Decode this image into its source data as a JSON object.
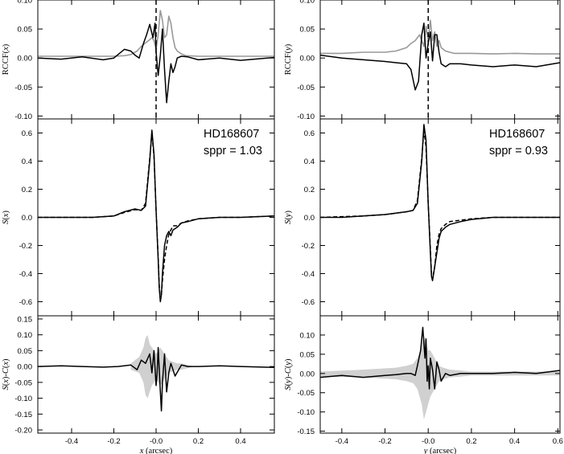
{
  "chart_data": [
    {
      "type": "line",
      "panel": "left-top",
      "ylabel": "RCCF(x)",
      "xlim": [
        -0.56,
        0.56
      ],
      "ylim": [
        -0.105,
        0.1
      ],
      "yticks": [
        -0.1,
        -0.05,
        0.0,
        0.05,
        0.1
      ],
      "ytick_labels": [
        "-0.10",
        "-0.05",
        "0.00",
        "0.05",
        "0.10"
      ],
      "vline": 0.0,
      "colors": {
        "black": "#000000",
        "gray": "#999999"
      },
      "series": [
        {
          "color": "gray",
          "x": [
            -0.56,
            -0.2,
            -0.15,
            -0.12,
            -0.09,
            -0.07,
            -0.05,
            -0.035,
            -0.02,
            -0.01,
            0.0,
            0.01,
            0.02,
            0.03,
            0.04,
            0.05,
            0.06,
            0.07,
            0.08,
            0.09,
            0.1,
            0.12,
            0.14,
            0.2,
            0.56
          ],
          "y": [
            0.003,
            0.003,
            0.004,
            0.006,
            0.012,
            0.02,
            0.026,
            0.03,
            0.035,
            0.03,
            0.015,
            0.04,
            0.082,
            0.065,
            0.035,
            0.04,
            0.072,
            0.06,
            0.035,
            0.018,
            0.012,
            0.007,
            0.004,
            0.003,
            0.003
          ]
        },
        {
          "color": "black",
          "x": [
            -0.56,
            -0.45,
            -0.35,
            -0.25,
            -0.2,
            -0.15,
            -0.12,
            -0.1,
            -0.08,
            -0.06,
            -0.045,
            -0.03,
            -0.015,
            -0.005,
            0.0,
            0.01,
            0.02,
            0.03,
            0.04,
            0.05,
            0.06,
            0.07,
            0.08,
            0.09,
            0.1,
            0.12,
            0.15,
            0.2,
            0.3,
            0.4,
            0.56
          ],
          "y": [
            0.0,
            -0.002,
            0.002,
            -0.003,
            0.0,
            0.015,
            0.012,
            0.005,
            0.0,
            0.025,
            0.04,
            0.058,
            0.035,
            0.06,
            0.01,
            -0.03,
            0.005,
            0.05,
            -0.02,
            -0.077,
            -0.04,
            -0.01,
            -0.025,
            -0.015,
            0.0,
            0.003,
            0.002,
            -0.003,
            0.0,
            -0.004,
            0.001
          ]
        }
      ]
    },
    {
      "type": "line",
      "panel": "left-middle",
      "ylabel": "S(x)",
      "xlim": [
        -0.56,
        0.56
      ],
      "ylim": [
        -0.7,
        0.7
      ],
      "yticks": [
        -0.6,
        -0.4,
        -0.2,
        0.0,
        0.2,
        0.4,
        0.6
      ],
      "ytick_labels": [
        "-0.6",
        "-0.4",
        "-0.2",
        "0.0",
        "0.2",
        "0.4",
        "0.6"
      ],
      "annotations": [
        "HD168607",
        "sppr = 1.03"
      ],
      "series": [
        {
          "color": "black",
          "x": [
            -0.56,
            -0.4,
            -0.3,
            -0.2,
            -0.15,
            -0.1,
            -0.07,
            -0.05,
            -0.03,
            -0.02,
            -0.01,
            0.0,
            0.01,
            0.015,
            0.02,
            0.025,
            0.03,
            0.04,
            0.05,
            0.06,
            0.07,
            0.08,
            0.1,
            0.12,
            0.15,
            0.2,
            0.3,
            0.4,
            0.56
          ],
          "y": [
            0.0,
            0.0,
            0.0,
            0.01,
            0.04,
            0.06,
            0.05,
            0.08,
            0.4,
            0.62,
            0.45,
            0.05,
            -0.3,
            -0.5,
            -0.6,
            -0.55,
            -0.4,
            -0.2,
            -0.13,
            -0.1,
            -0.13,
            -0.09,
            -0.07,
            -0.04,
            -0.03,
            -0.01,
            0.0,
            0.0,
            0.01
          ]
        },
        {
          "color": "black",
          "dashed": true,
          "x": [
            -0.56,
            -0.4,
            -0.3,
            -0.2,
            -0.15,
            -0.1,
            -0.07,
            -0.05,
            -0.03,
            -0.02,
            -0.01,
            0.0,
            0.01,
            0.015,
            0.02,
            0.025,
            0.03,
            0.04,
            0.05,
            0.06,
            0.08,
            0.1,
            0.12,
            0.15,
            0.2,
            0.3,
            0.4,
            0.56
          ],
          "y": [
            0.0,
            0.0,
            0.0,
            0.01,
            0.035,
            0.055,
            0.05,
            0.1,
            0.42,
            0.6,
            0.43,
            0.05,
            -0.28,
            -0.48,
            -0.58,
            -0.55,
            -0.45,
            -0.3,
            -0.2,
            -0.12,
            -0.06,
            -0.06,
            -0.04,
            -0.025,
            -0.01,
            0.0,
            0.0,
            0.01
          ]
        }
      ]
    },
    {
      "type": "line",
      "panel": "left-bottom",
      "ylabel": "S(x)-C(x)",
      "xlabel": "x (arcsec)",
      "xlim": [
        -0.56,
        0.56
      ],
      "ylim": [
        -0.21,
        0.16
      ],
      "yticks": [
        -0.2,
        -0.15,
        -0.1,
        -0.05,
        0.0,
        0.05,
        0.1,
        0.15
      ],
      "ytick_labels": [
        "-0.20",
        "-0.15",
        "-0.10",
        "-0.05",
        "0.00",
        "0.05",
        "0.10",
        "0.15"
      ],
      "xticks": [
        -0.4,
        -0.2,
        0.0,
        0.2,
        0.4
      ],
      "xtick_labels": [
        "-0.4",
        "-0.2",
        "-0.0",
        "0.2",
        "0.4"
      ],
      "band": {
        "x": [
          -0.12,
          -0.08,
          -0.06,
          -0.05,
          -0.04,
          -0.03,
          -0.02,
          -0.01,
          0.0,
          0.01,
          0.02,
          0.03,
          0.04,
          0.05,
          0.06,
          0.08,
          0.1,
          0.12,
          0.15,
          0.18
        ],
        "upper": [
          0.01,
          0.03,
          0.06,
          0.09,
          0.1,
          0.07,
          0.06,
          0.05,
          0.04,
          0.05,
          0.06,
          0.05,
          0.04,
          0.03,
          0.02,
          0.015,
          0.01,
          0.01,
          0.005,
          0.0
        ],
        "lower": [
          -0.01,
          -0.02,
          -0.05,
          -0.09,
          -0.1,
          -0.08,
          -0.06,
          -0.05,
          -0.04,
          -0.05,
          -0.06,
          -0.05,
          -0.04,
          -0.03,
          -0.02,
          -0.015,
          -0.01,
          -0.01,
          -0.005,
          0.0
        ]
      },
      "series": [
        {
          "color": "black",
          "x": [
            -0.56,
            -0.45,
            -0.35,
            -0.25,
            -0.18,
            -0.12,
            -0.09,
            -0.07,
            -0.05,
            -0.03,
            -0.02,
            -0.01,
            0.0,
            0.005,
            0.01,
            0.02,
            0.025,
            0.03,
            0.04,
            0.05,
            0.06,
            0.07,
            0.09,
            0.12,
            0.15,
            0.2,
            0.3,
            0.4,
            0.56
          ],
          "y": [
            0.0,
            0.002,
            0.0,
            -0.002,
            0.0,
            0.005,
            -0.01,
            0.02,
            0.01,
            0.04,
            -0.02,
            0.05,
            -0.06,
            -0.02,
            0.06,
            -0.08,
            -0.14,
            -0.05,
            0.04,
            -0.08,
            -0.02,
            0.01,
            -0.03,
            0.005,
            0.0,
            0.0,
            0.002,
            0.0,
            -0.003
          ]
        }
      ]
    },
    {
      "type": "line",
      "panel": "right-top",
      "ylabel": "RCCF(y)",
      "xlim": [
        -0.5,
        0.61
      ],
      "ylim": [
        -0.105,
        0.1
      ],
      "yticks": [
        -0.1,
        -0.05,
        0.0,
        0.05,
        0.1
      ],
      "ytick_labels": [
        "-0.10",
        "-0.05",
        "0.00",
        "0.05",
        "0.10"
      ],
      "vline": 0.0,
      "series": [
        {
          "color": "gray",
          "x": [
            -0.5,
            -0.4,
            -0.3,
            -0.2,
            -0.15,
            -0.1,
            -0.08,
            -0.06,
            -0.04,
            -0.02,
            -0.01,
            0.0,
            0.01,
            0.02,
            0.03,
            0.04,
            0.05,
            0.06,
            0.08,
            0.1,
            0.12,
            0.15,
            0.2,
            0.3,
            0.4,
            0.5,
            0.61
          ],
          "y": [
            0.008,
            0.008,
            0.01,
            0.01,
            0.012,
            0.018,
            0.025,
            0.03,
            0.04,
            0.02,
            0.055,
            0.03,
            0.065,
            0.03,
            0.045,
            0.02,
            0.03,
            0.018,
            0.012,
            0.01,
            0.008,
            0.008,
            0.008,
            0.007,
            0.008,
            0.007,
            0.007
          ]
        },
        {
          "color": "black",
          "x": [
            -0.5,
            -0.4,
            -0.3,
            -0.2,
            -0.15,
            -0.1,
            -0.08,
            -0.06,
            -0.045,
            -0.03,
            -0.02,
            -0.01,
            0.0,
            0.01,
            0.02,
            0.03,
            0.04,
            0.05,
            0.06,
            0.08,
            0.1,
            0.15,
            0.2,
            0.3,
            0.4,
            0.5,
            0.61
          ],
          "y": [
            0.005,
            0.0,
            -0.003,
            -0.006,
            -0.008,
            -0.01,
            -0.02,
            -0.055,
            -0.04,
            0.04,
            0.06,
            0.0,
            0.025,
            0.045,
            -0.005,
            0.04,
            0.04,
            0.01,
            -0.01,
            -0.015,
            -0.01,
            -0.01,
            -0.012,
            -0.015,
            -0.012,
            -0.015,
            -0.008
          ]
        }
      ]
    },
    {
      "type": "line",
      "panel": "right-middle",
      "ylabel": "S(y)",
      "xlim": [
        -0.5,
        0.61
      ],
      "ylim": [
        -0.7,
        0.7
      ],
      "yticks": [
        -0.6,
        -0.4,
        -0.2,
        0.0,
        0.2,
        0.4,
        0.6
      ],
      "ytick_labels": [
        "-0.6",
        "-0.4",
        "-0.2",
        "0.0",
        "0.2",
        "0.4",
        "0.6"
      ],
      "annotations": [
        "HD168607",
        "sppr = 0.93"
      ],
      "series": [
        {
          "color": "black",
          "x": [
            -0.5,
            -0.4,
            -0.3,
            -0.2,
            -0.15,
            -0.1,
            -0.07,
            -0.05,
            -0.03,
            -0.02,
            -0.01,
            0.0,
            0.01,
            0.015,
            0.02,
            0.03,
            0.04,
            0.05,
            0.06,
            0.08,
            0.1,
            0.15,
            0.2,
            0.3,
            0.4,
            0.5,
            0.61
          ],
          "y": [
            0.0,
            0.0,
            0.01,
            0.02,
            0.03,
            0.04,
            0.05,
            0.1,
            0.4,
            0.66,
            0.55,
            0.1,
            -0.25,
            -0.42,
            -0.45,
            -0.35,
            -0.25,
            -0.15,
            -0.1,
            -0.07,
            -0.05,
            -0.03,
            -0.015,
            0.0,
            0.0,
            0.0,
            0.0
          ]
        },
        {
          "color": "black",
          "dashed": true,
          "x": [
            -0.5,
            -0.4,
            -0.3,
            -0.2,
            -0.15,
            -0.1,
            -0.07,
            -0.05,
            -0.03,
            -0.02,
            -0.01,
            0.0,
            0.01,
            0.015,
            0.02,
            0.03,
            0.04,
            0.05,
            0.06,
            0.08,
            0.1,
            0.15,
            0.2,
            0.3,
            0.4,
            0.5,
            0.61
          ],
          "y": [
            0.0,
            0.005,
            0.01,
            0.02,
            0.03,
            0.04,
            0.05,
            0.12,
            0.42,
            0.62,
            0.5,
            0.1,
            -0.22,
            -0.4,
            -0.44,
            -0.35,
            -0.2,
            -0.12,
            -0.08,
            -0.05,
            -0.03,
            -0.02,
            -0.01,
            0.0,
            0.0,
            0.0,
            0.0
          ]
        }
      ]
    },
    {
      "type": "line",
      "panel": "right-bottom",
      "ylabel": "S(y)-C(y)",
      "xlabel": "y (arcsec)",
      "xlim": [
        -0.5,
        0.61
      ],
      "ylim": [
        -0.155,
        0.15
      ],
      "yticks": [
        -0.15,
        -0.1,
        -0.05,
        0.0,
        0.05,
        0.1
      ],
      "ytick_labels": [
        "-0.15",
        "-0.10",
        "-0.05",
        "0.00",
        "0.05",
        "0.10"
      ],
      "xticks": [
        -0.4,
        -0.2,
        0.0,
        0.2,
        0.4,
        0.6
      ],
      "xtick_labels": [
        "-0.4",
        "-0.2",
        "-0.0",
        "0.2",
        "0.4",
        "0.6"
      ],
      "band": {
        "x": [
          -0.5,
          -0.3,
          -0.15,
          -0.1,
          -0.07,
          -0.05,
          -0.03,
          -0.02,
          -0.01,
          0.0,
          0.01,
          0.02,
          0.03,
          0.05,
          0.07,
          0.1,
          0.15,
          0.2,
          0.3,
          0.45,
          0.61
        ],
        "upper": [
          0.005,
          0.01,
          0.015,
          0.02,
          0.025,
          0.04,
          0.07,
          0.1,
          0.08,
          0.06,
          0.06,
          0.05,
          0.04,
          0.02,
          0.015,
          0.01,
          0.008,
          0.005,
          0.005,
          0.005,
          0.005
        ],
        "lower": [
          -0.008,
          -0.01,
          -0.015,
          -0.02,
          -0.025,
          -0.04,
          -0.08,
          -0.12,
          -0.1,
          -0.08,
          -0.06,
          -0.05,
          -0.04,
          -0.02,
          -0.015,
          -0.01,
          -0.008,
          -0.005,
          -0.005,
          -0.005,
          -0.005
        ]
      },
      "series": [
        {
          "color": "black",
          "x": [
            -0.5,
            -0.4,
            -0.3,
            -0.2,
            -0.15,
            -0.1,
            -0.08,
            -0.06,
            -0.05,
            -0.035,
            -0.025,
            -0.015,
            -0.01,
            -0.005,
            0.0,
            0.005,
            0.01,
            0.02,
            0.03,
            0.04,
            0.05,
            0.06,
            0.08,
            0.1,
            0.15,
            0.2,
            0.3,
            0.4,
            0.5,
            0.61
          ],
          "y": [
            -0.01,
            -0.005,
            -0.01,
            -0.005,
            -0.003,
            0.0,
            0.0,
            -0.005,
            0.02,
            0.06,
            0.12,
            0.04,
            0.09,
            -0.02,
            0.02,
            -0.04,
            0.04,
            0.01,
            -0.04,
            0.03,
            0.01,
            -0.02,
            0.0,
            -0.005,
            0.0,
            0.0,
            0.0,
            0.003,
            0.0,
            0.008
          ]
        }
      ]
    }
  ]
}
